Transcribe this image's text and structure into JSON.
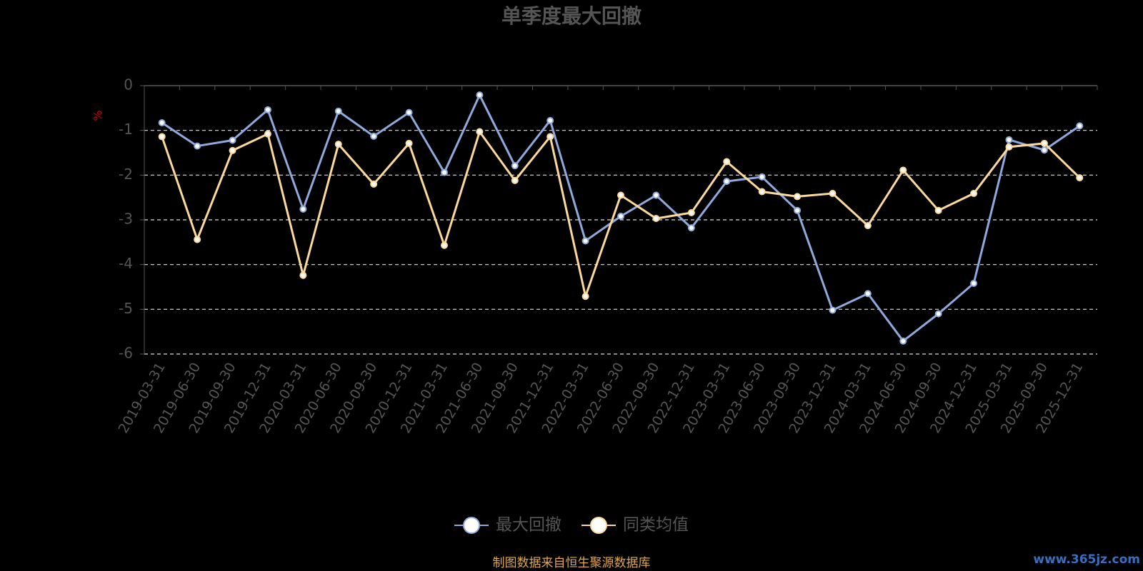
{
  "chart_data": {
    "type": "line",
    "title": "单季度最大回撤",
    "y_label": "%",
    "categories": [
      "2019-03-31",
      "2019-06-30",
      "2019-09-30",
      "2019-12-31",
      "2020-03-31",
      "2020-06-30",
      "2020-09-30",
      "2020-12-31",
      "2021-03-31",
      "2021-06-30",
      "2021-09-30",
      "2021-12-31",
      "2022-03-31",
      "2022-06-30",
      "2022-09-30",
      "2022-12-31",
      "2023-03-31",
      "2023-06-30",
      "2023-09-30",
      "2023-12-31",
      "2024-03-31",
      "2024-06-30",
      "2024-09-30",
      "2024-12-31",
      "2025-03-31",
      "2025-09-30",
      "2025-12-31"
    ],
    "series": [
      {
        "name": "最大回撤",
        "color": "#8fa9dc",
        "values": [
          -0.83,
          -1.35,
          -1.22,
          -0.54,
          -2.76,
          -0.57,
          -1.13,
          -0.6,
          -1.94,
          -0.21,
          -1.79,
          -0.78,
          -3.47,
          -2.92,
          -2.45,
          -3.18,
          -2.14,
          -2.04,
          -2.79,
          -5.02,
          -4.65,
          -5.71,
          -5.1,
          -4.42,
          -1.21,
          -1.44,
          -0.9
        ]
      },
      {
        "name": "同类均值",
        "color": "#fcd99a",
        "values": [
          -1.14,
          -3.44,
          -1.45,
          -1.08,
          -4.24,
          -1.31,
          -2.2,
          -1.29,
          -3.57,
          -1.03,
          -2.12,
          -1.14,
          -4.71,
          -2.45,
          -2.97,
          -2.84,
          -1.7,
          -2.37,
          -2.48,
          -2.41,
          -3.13,
          -1.89,
          -2.79,
          -2.41,
          -1.37,
          -1.29,
          -2.06
        ]
      }
    ],
    "ylim": [
      -6,
      0
    ],
    "yticks": [
      0,
      -1,
      -2,
      -3,
      -4,
      -5,
      -6
    ],
    "grid": true,
    "legend": "bottom",
    "source": "制图数据来自恒生聚源数据库",
    "watermark": "www.365jz.com"
  }
}
